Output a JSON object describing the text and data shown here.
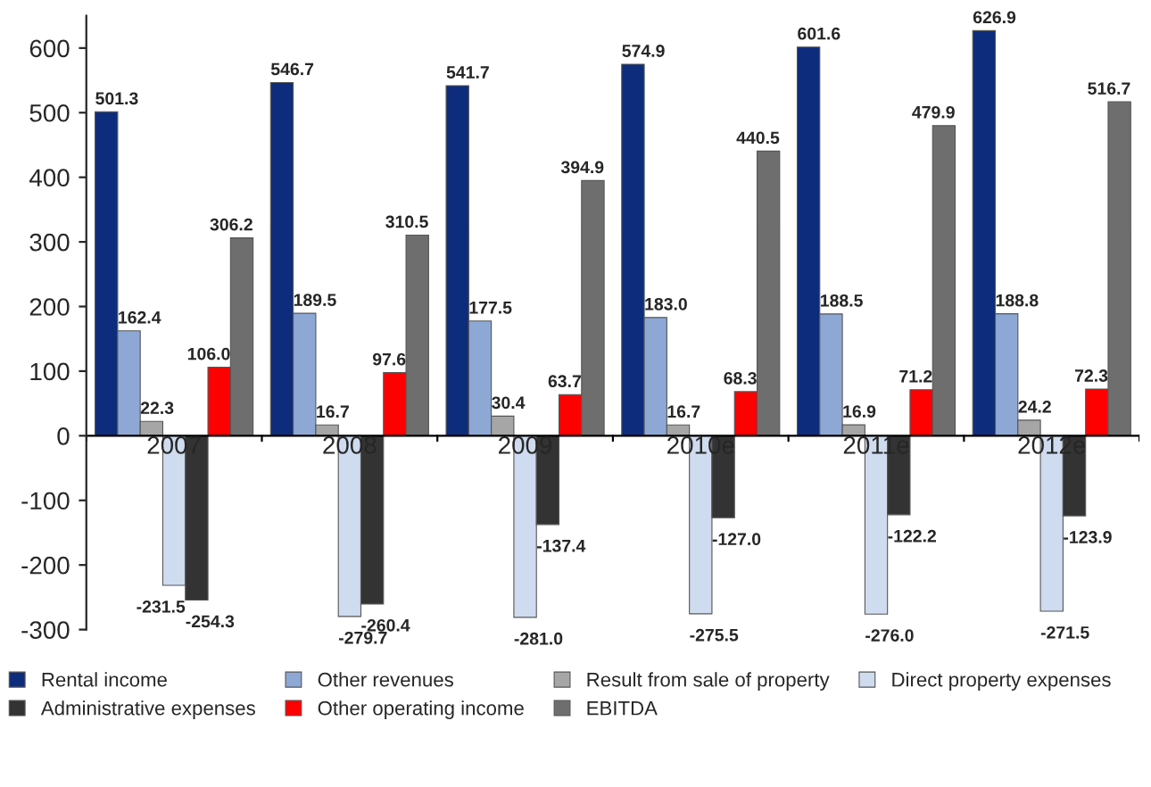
{
  "chart_data": {
    "type": "bar",
    "categories": [
      "2007",
      "2008",
      "2009",
      "2010e",
      "2011e",
      "2012e"
    ],
    "series": [
      {
        "name": "Rental income",
        "color": "#0d2c7c",
        "values": [
          501.3,
          546.7,
          541.7,
          574.9,
          601.6,
          626.9
        ],
        "value_labels": [
          "501.3",
          "546.7",
          "541.7",
          "574.9",
          "601.6",
          "626.9"
        ]
      },
      {
        "name": "Other revenues",
        "color": "#8ea8d6",
        "values": [
          162.4,
          189.5,
          177.5,
          183.0,
          188.5,
          188.8
        ],
        "value_labels": [
          "162.4",
          "189.5",
          "177.5",
          "183.0",
          "188.5",
          "188.8"
        ]
      },
      {
        "name": "Result from sale of property",
        "color": "#a6a6a6",
        "values": [
          22.3,
          16.7,
          30.4,
          16.7,
          16.9,
          24.2
        ],
        "value_labels": [
          "22.3",
          "16.7",
          "30.4",
          "16.7",
          "16.9",
          "24.2"
        ]
      },
      {
        "name": "Direct property expenses",
        "color": "#cfdbef",
        "values": [
          -231.5,
          -279.7,
          -281.0,
          -275.5,
          -276.0,
          -271.5
        ],
        "value_labels": [
          "-231.5",
          "-279.7",
          "-281.0",
          "-275.5",
          "-276.0",
          "-271.5"
        ]
      },
      {
        "name": "Administrative expenses",
        "color": "#333333",
        "values": [
          -254.3,
          -260.4,
          -137.4,
          -127.0,
          -122.2,
          -123.9
        ],
        "value_labels": [
          "-254.3",
          "-260.4",
          "-137.4",
          "-127.0",
          "-122.2",
          "-123.9"
        ]
      },
      {
        "name": "Other operating income",
        "color": "#ff0000",
        "values": [
          106.0,
          97.6,
          63.7,
          68.3,
          71.2,
          72.3
        ],
        "value_labels": [
          "106.0",
          "97.6",
          "63.7",
          "68.3",
          "71.2",
          "72.3"
        ]
      },
      {
        "name": "EBITDA",
        "color": "#6e6e6e",
        "values": [
          306.2,
          310.5,
          394.9,
          440.5,
          479.9,
          516.7
        ],
        "value_labels": [
          "306.2",
          "310.5",
          "394.9",
          "440.5",
          "479.9",
          "516.7"
        ]
      }
    ],
    "ylim": [
      -300,
      650
    ],
    "yticks": [
      -300,
      -200,
      -100,
      0,
      100,
      200,
      300,
      400,
      500,
      600
    ],
    "grid": false,
    "legend": "bottom"
  }
}
